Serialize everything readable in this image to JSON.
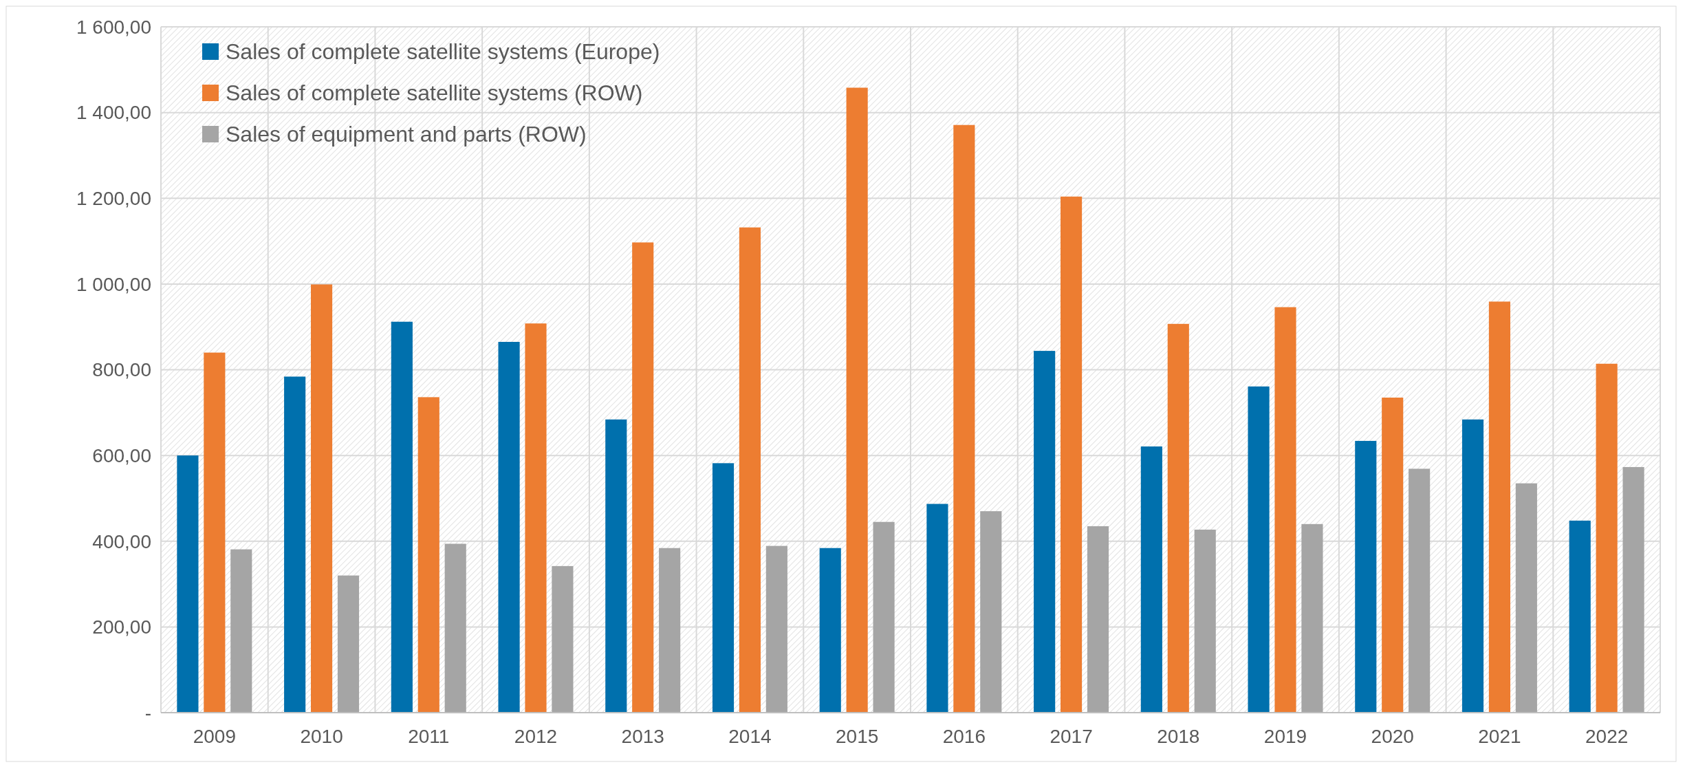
{
  "chart_data": {
    "type": "bar",
    "categories": [
      "2009",
      "2010",
      "2011",
      "2012",
      "2013",
      "2014",
      "2015",
      "2016",
      "2017",
      "2018",
      "2019",
      "2020",
      "2021",
      "2022"
    ],
    "series": [
      {
        "name": "Sales of complete satellite systems (Europe)",
        "color": "#0070ad",
        "values": [
          600,
          784,
          912,
          865,
          684,
          582,
          384,
          487,
          844,
          621,
          761,
          634,
          684,
          448
        ]
      },
      {
        "name": "Sales of complete satellite systems (ROW)",
        "color": "#ed7d31",
        "values": [
          840,
          999,
          736,
          908,
          1097,
          1132,
          1458,
          1371,
          1204,
          907,
          946,
          735,
          959,
          814
        ]
      },
      {
        "name": "Sales of equipment and parts (ROW)",
        "color": "#a5a5a5",
        "values": [
          381,
          320,
          394,
          342,
          384,
          389,
          445,
          470,
          435,
          427,
          440,
          569,
          535,
          573
        ]
      }
    ],
    "ylim": [
      0,
      1600
    ],
    "yticks": [
      {
        "value": 0,
        "label": "-"
      },
      {
        "value": 200,
        "label": "200,00"
      },
      {
        "value": 400,
        "label": "400,00"
      },
      {
        "value": 600,
        "label": "600,00"
      },
      {
        "value": 800,
        "label": "800,00"
      },
      {
        "value": 1000,
        "label": "1 000,00"
      },
      {
        "value": 1200,
        "label": "1 200,00"
      },
      {
        "value": 1400,
        "label": "1 400,00"
      },
      {
        "value": 1600,
        "label": "1 600,00"
      }
    ],
    "grid": true,
    "legend": "top left"
  }
}
